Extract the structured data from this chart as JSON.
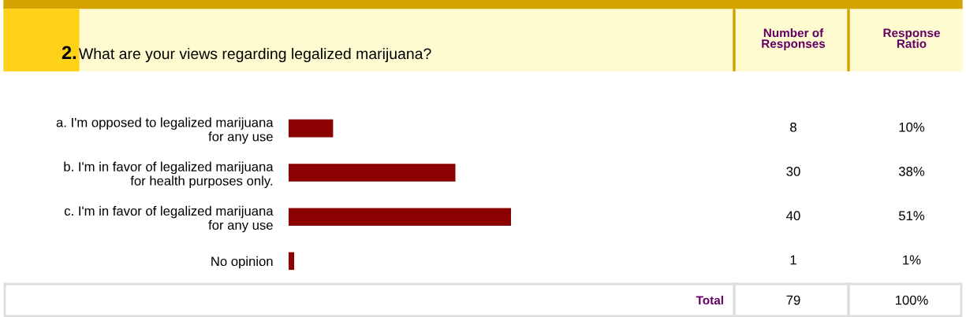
{
  "chart_data": {
    "type": "bar",
    "orientation": "horizontal",
    "title": "2. What are your views regarding legalized marijuana?",
    "categories": [
      "a. I'm opposed to legalized marijuana\nfor any use",
      "b. I'm in favor of legalized marijuana\nfor health purposes only.",
      "c. I'm in favor of legalized marijuana\nfor any use",
      "No opinion"
    ],
    "values": [
      8,
      30,
      40,
      1
    ],
    "color": "#8b0000",
    "data_labels": true,
    "xlim": [
      0,
      40
    ],
    "tick_labels": "y",
    "grid": false,
    "legend": false,
    "annotations": [
      "Number of\nResponses",
      "Response\nRatio",
      "10%",
      "38%",
      "51%",
      "1%",
      "Total",
      "79",
      "100%"
    ]
  }
}
